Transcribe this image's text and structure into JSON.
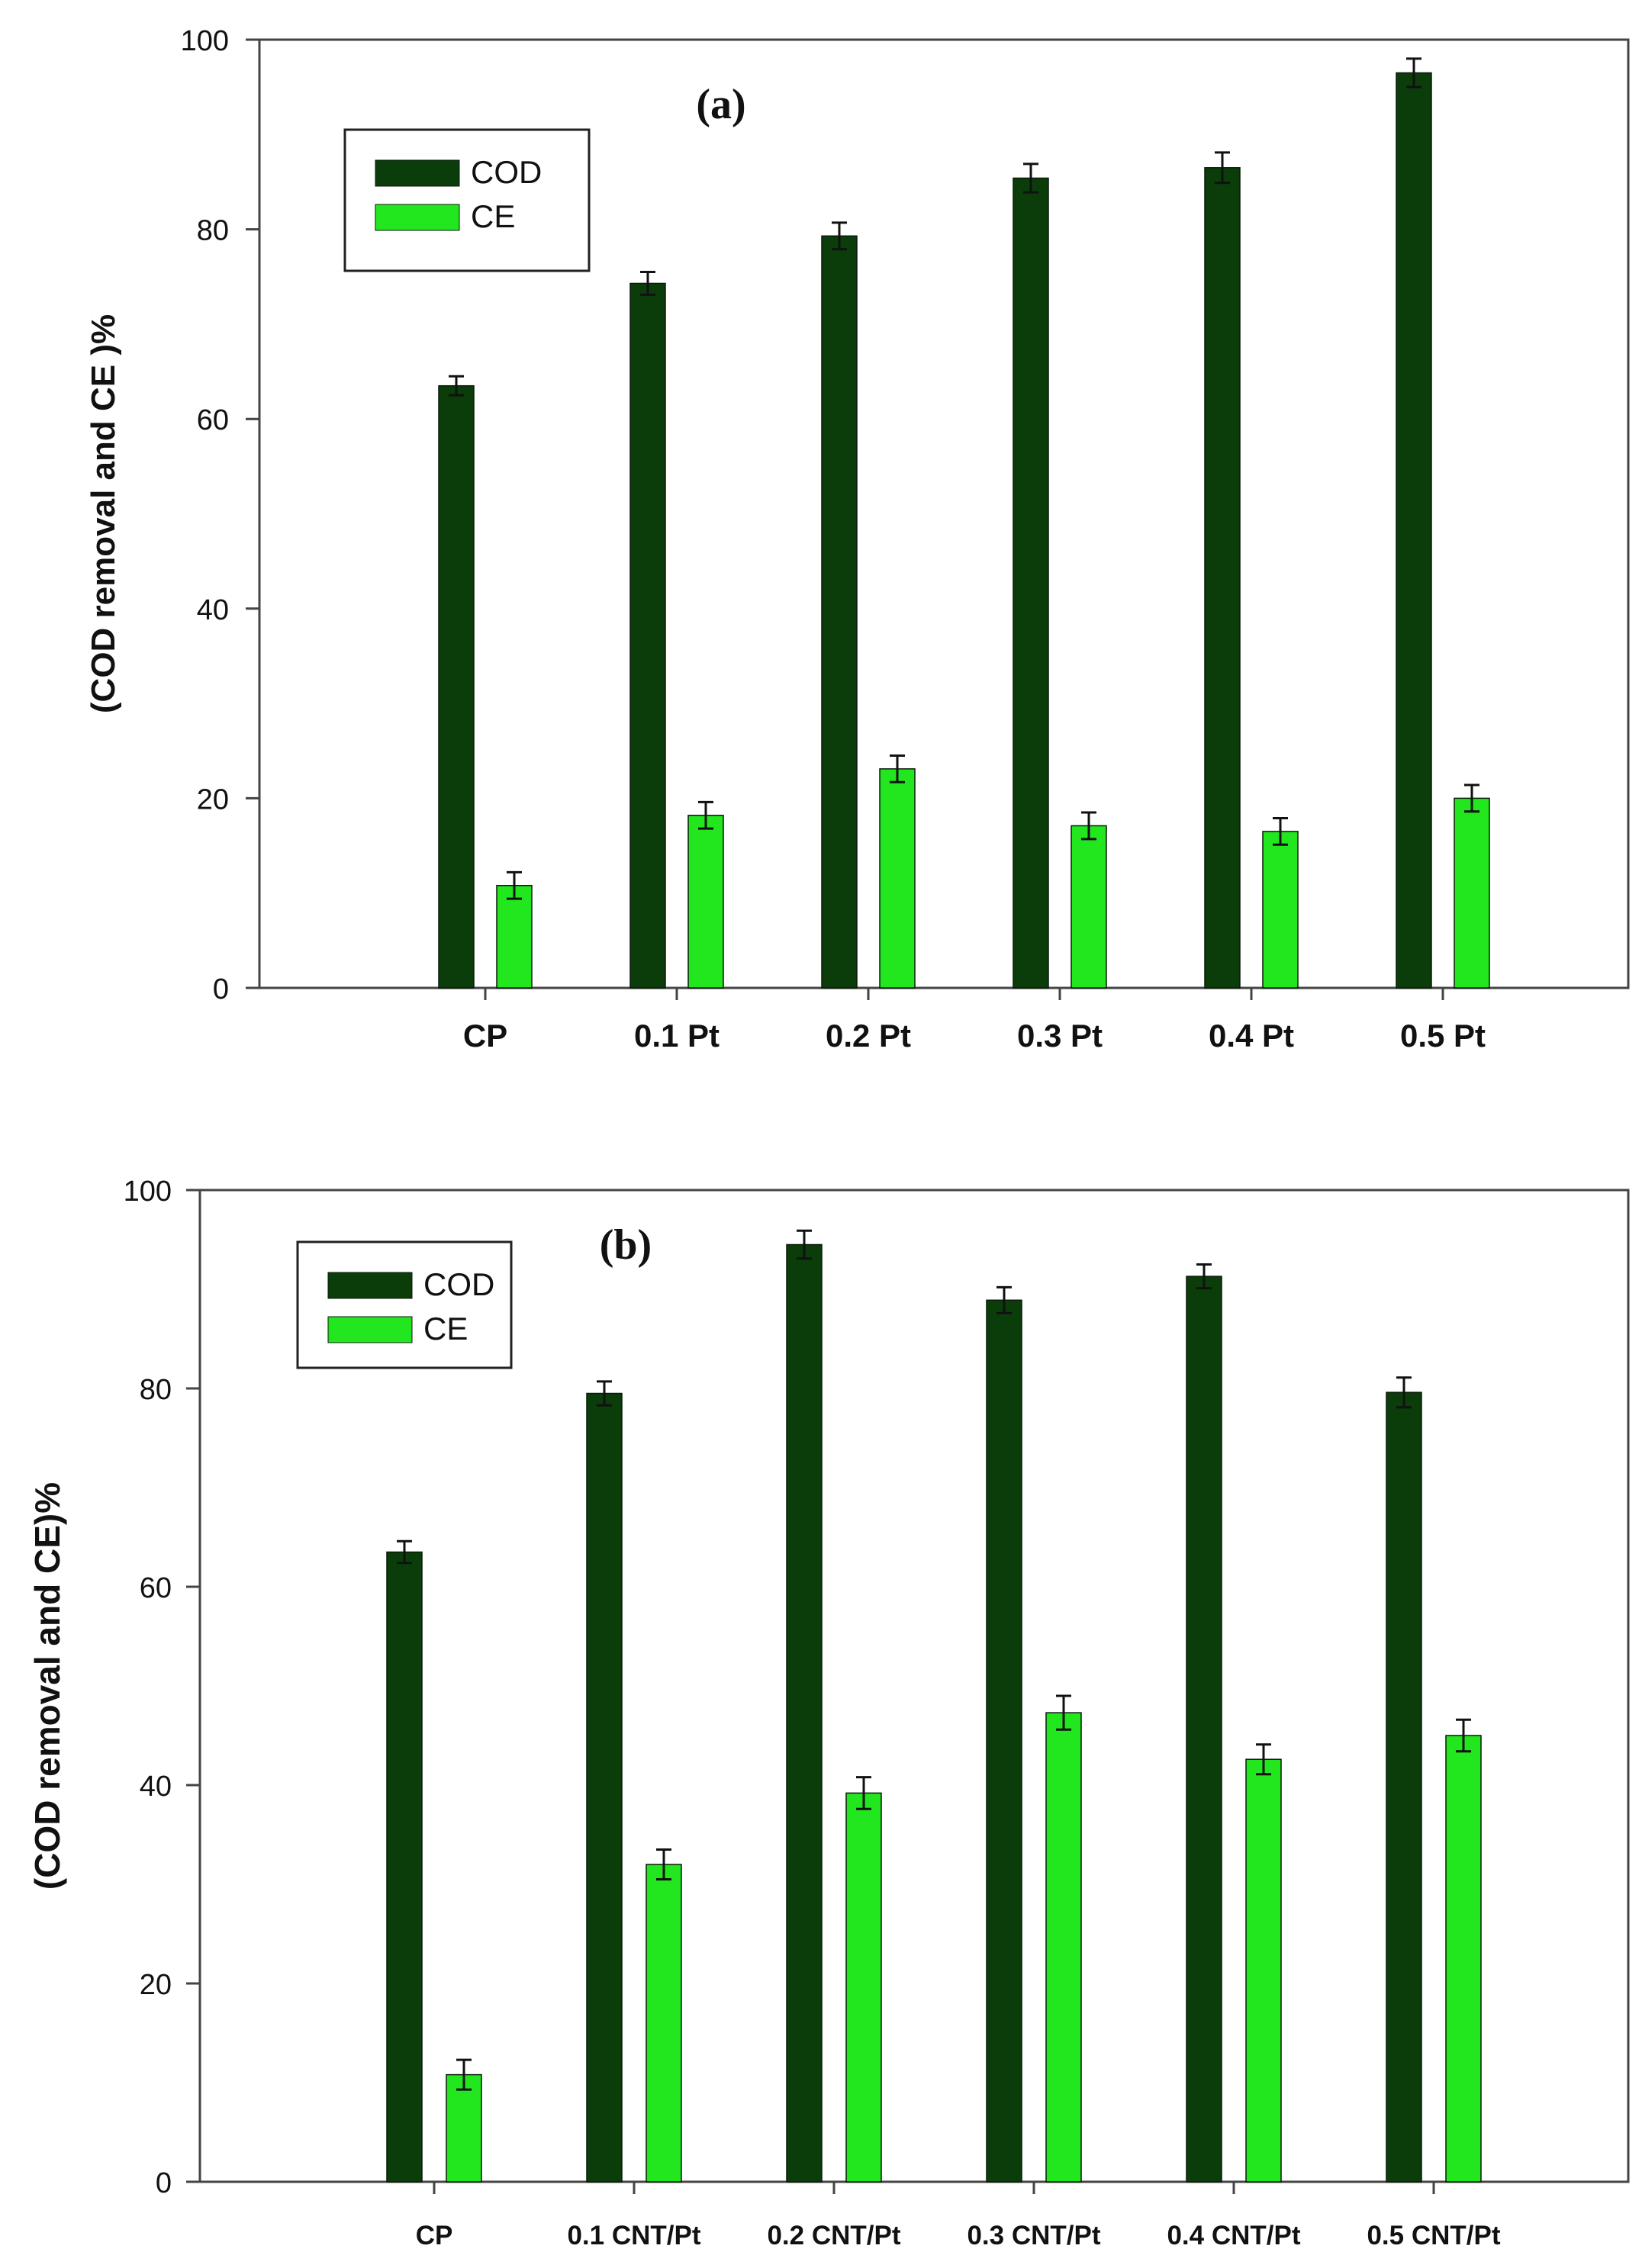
{
  "colors": {
    "cod": "#0b3d0b",
    "ce": "#22e61e",
    "frame": "#444444",
    "text": "#111111"
  },
  "chart_data": [
    {
      "type": "bar",
      "panel_label": "(a)",
      "categories": [
        "CP",
        "0.1 Pt",
        "0.2 Pt",
        "0.3 Pt",
        "0.4 Pt",
        "0.5 Pt"
      ],
      "series": [
        {
          "name": "COD",
          "values": [
            63.5,
            74.3,
            79.3,
            85.4,
            86.5,
            96.5
          ],
          "errors": [
            1.0,
            1.2,
            1.4,
            1.5,
            1.6,
            1.5
          ]
        },
        {
          "name": "CE",
          "values": [
            10.8,
            18.2,
            23.1,
            17.1,
            16.5,
            20.0
          ],
          "errors": [
            1.4,
            1.4,
            1.4,
            1.4,
            1.4,
            1.4
          ]
        }
      ],
      "ylabel": "(COD removal and CE )%",
      "xlabel": "",
      "ylim": [
        0,
        100
      ],
      "yticks": [
        "0",
        "20",
        "40",
        "60",
        "80",
        "100"
      ],
      "legend_position": "top-left",
      "grid": false
    },
    {
      "type": "bar",
      "panel_label": "(b)",
      "categories": [
        "CP",
        "0.1 CNT/Pt",
        "0.2 CNT/Pt",
        "0.3 CNT/Pt",
        "0.4 CNT/Pt",
        "0.5 CNT/Pt"
      ],
      "series": [
        {
          "name": "COD",
          "values": [
            63.5,
            79.5,
            94.5,
            88.9,
            91.3,
            79.6
          ],
          "errors": [
            1.1,
            1.2,
            1.4,
            1.3,
            1.2,
            1.5
          ]
        },
        {
          "name": "CE",
          "values": [
            10.8,
            32.0,
            39.2,
            47.3,
            42.6,
            45.0
          ],
          "errors": [
            1.5,
            1.5,
            1.6,
            1.7,
            1.5,
            1.6
          ]
        }
      ],
      "ylabel": "(COD removal and CE)%",
      "xlabel": "",
      "ylim": [
        0,
        100
      ],
      "yticks": [
        "0",
        "20",
        "40",
        "60",
        "80",
        "100"
      ],
      "legend_position": "top-left",
      "grid": false
    }
  ]
}
